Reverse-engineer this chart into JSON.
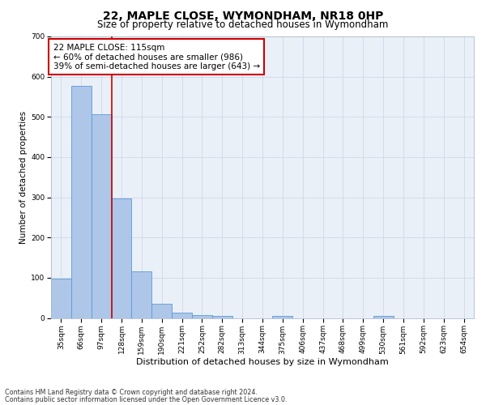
{
  "title": "22, MAPLE CLOSE, WYMONDHAM, NR18 0HP",
  "subtitle": "Size of property relative to detached houses in Wymondham",
  "xlabel": "Distribution of detached houses by size in Wymondham",
  "ylabel": "Number of detached properties",
  "footnote1": "Contains HM Land Registry data © Crown copyright and database right 2024.",
  "footnote2": "Contains public sector information licensed under the Open Government Licence v3.0.",
  "categories": [
    "35sqm",
    "66sqm",
    "97sqm",
    "128sqm",
    "159sqm",
    "190sqm",
    "221sqm",
    "252sqm",
    "282sqm",
    "313sqm",
    "344sqm",
    "375sqm",
    "406sqm",
    "437sqm",
    "468sqm",
    "499sqm",
    "530sqm",
    "561sqm",
    "592sqm",
    "623sqm",
    "654sqm"
  ],
  "values": [
    97,
    578,
    507,
    298,
    115,
    35,
    14,
    8,
    6,
    0,
    0,
    6,
    0,
    0,
    0,
    0,
    5,
    0,
    0,
    0,
    0
  ],
  "bar_color": "#aec6e8",
  "bar_edge_color": "#5b9bd5",
  "grid_color": "#d0d8e8",
  "background_color": "#eaf0f8",
  "red_line_x": 2.5,
  "annotation_text": "22 MAPLE CLOSE: 115sqm\n← 60% of detached houses are smaller (986)\n39% of semi-detached houses are larger (643) →",
  "annotation_box_color": "#ffffff",
  "annotation_box_edge": "#cc0000",
  "ylim": [
    0,
    700
  ],
  "yticks": [
    0,
    100,
    200,
    300,
    400,
    500,
    600,
    700
  ],
  "title_fontsize": 10,
  "subtitle_fontsize": 8.5,
  "xlabel_fontsize": 8,
  "ylabel_fontsize": 7.5,
  "tick_fontsize": 6.5,
  "annotation_fontsize": 7.5,
  "footnote_fontsize": 5.8
}
